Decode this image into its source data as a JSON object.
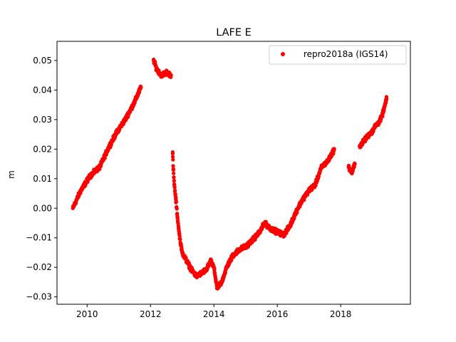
{
  "chart_data": {
    "type": "scatter",
    "title": "LAFE E",
    "xlabel": "",
    "ylabel": "m",
    "xlim": [
      2009.05,
      2020.2
    ],
    "ylim": [
      -0.0325,
      0.0565
    ],
    "xticks": [
      2010,
      2012,
      2014,
      2016,
      2018
    ],
    "xtick_labels": [
      "2010",
      "2012",
      "2014",
      "2016",
      "2018"
    ],
    "yticks": [
      -0.03,
      -0.02,
      -0.01,
      0.0,
      0.01,
      0.02,
      0.03,
      0.04,
      0.05
    ],
    "ytick_labels": [
      "−0.03",
      "−0.02",
      "−0.01",
      "0.00",
      "0.01",
      "0.02",
      "0.03",
      "0.04",
      "0.05"
    ],
    "grid": false,
    "legend_position": "top-right",
    "series": [
      {
        "name": "repro2018a (IGS14)",
        "color": "#ff0000",
        "marker": "circle",
        "segments": [
          {
            "x": [
              2009.55,
              2009.8,
              2010.1,
              2010.4,
              2010.7,
              2010.95,
              2011.2,
              2011.5,
              2011.7
            ],
            "y": [
              0.0,
              0.006,
              0.011,
              0.014,
              0.021,
              0.026,
              0.03,
              0.036,
              0.041
            ]
          },
          {
            "x": [
              2012.1,
              2012.2,
              2012.35,
              2012.5,
              2012.65
            ],
            "y": [
              0.05,
              0.047,
              0.045,
              0.046,
              0.045
            ]
          },
          {
            "x": [
              2012.7,
              2012.72,
              2012.75,
              2012.8,
              2012.85,
              2012.9,
              2012.95,
              2013.0,
              2013.1,
              2013.2,
              2013.3,
              2013.45,
              2013.6,
              2013.75,
              2013.9,
              2014.0,
              2014.1,
              2014.25,
              2014.4,
              2014.6,
              2014.8,
              2015.0,
              2015.2,
              2015.45,
              2015.6,
              2015.8,
              2016.0,
              2016.2,
              2016.4,
              2016.6,
              2016.8,
              2017.0,
              2017.2,
              2017.4,
              2017.6,
              2017.8
            ],
            "y": [
              0.019,
              0.013,
              0.008,
              0.003,
              -0.003,
              -0.008,
              -0.012,
              -0.015,
              -0.017,
              -0.019,
              -0.021,
              -0.023,
              -0.022,
              -0.021,
              -0.018,
              -0.02,
              -0.027,
              -0.025,
              -0.02,
              -0.016,
              -0.014,
              -0.013,
              -0.011,
              -0.008,
              -0.005,
              -0.007,
              -0.008,
              -0.009,
              -0.006,
              -0.001,
              0.003,
              0.006,
              0.008,
              0.014,
              0.016,
              0.02
            ]
          },
          {
            "x": [
              2018.25,
              2018.35,
              2018.45
            ],
            "y": [
              0.014,
              0.012,
              0.015
            ]
          },
          {
            "x": [
              2018.6,
              2018.75,
              2018.9,
              2019.0,
              2019.1,
              2019.2,
              2019.3,
              2019.45
            ],
            "y": [
              0.021,
              0.023,
              0.025,
              0.026,
              0.028,
              0.029,
              0.031,
              0.037
            ]
          }
        ]
      }
    ]
  }
}
